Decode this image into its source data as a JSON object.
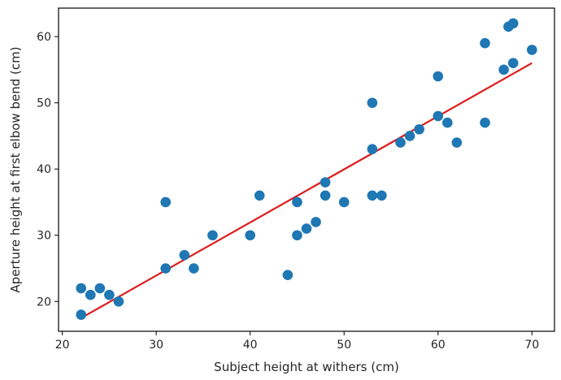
{
  "chart_data": {
    "type": "scatter",
    "title": "",
    "xlabel": "Subject height at withers (cm)",
    "ylabel": "Aperture height at first elbow bend (cm)",
    "xlim": [
      19.6,
      72.4
    ],
    "ylim": [
      15.5,
      64.3
    ],
    "x_ticks": [
      20,
      30,
      40,
      50,
      60,
      70
    ],
    "y_ticks": [
      20,
      30,
      40,
      50,
      60
    ],
    "grid": false,
    "point_color": "#1f77b4",
    "fit_color": "#dd1c1c",
    "points": [
      {
        "x": 22,
        "y": 22
      },
      {
        "x": 22,
        "y": 18
      },
      {
        "x": 23,
        "y": 21
      },
      {
        "x": 24,
        "y": 22
      },
      {
        "x": 25,
        "y": 21
      },
      {
        "x": 26,
        "y": 20
      },
      {
        "x": 31,
        "y": 35
      },
      {
        "x": 31,
        "y": 25
      },
      {
        "x": 33,
        "y": 27
      },
      {
        "x": 34,
        "y": 25
      },
      {
        "x": 36,
        "y": 30
      },
      {
        "x": 40,
        "y": 30
      },
      {
        "x": 41,
        "y": 36
      },
      {
        "x": 44,
        "y": 24
      },
      {
        "x": 45,
        "y": 35
      },
      {
        "x": 45,
        "y": 30
      },
      {
        "x": 46,
        "y": 31
      },
      {
        "x": 47,
        "y": 32
      },
      {
        "x": 48,
        "y": 38
      },
      {
        "x": 48,
        "y": 36
      },
      {
        "x": 50,
        "y": 35
      },
      {
        "x": 53,
        "y": 50
      },
      {
        "x": 53,
        "y": 43
      },
      {
        "x": 53,
        "y": 36
      },
      {
        "x": 54,
        "y": 36
      },
      {
        "x": 56,
        "y": 44
      },
      {
        "x": 57,
        "y": 45
      },
      {
        "x": 58,
        "y": 46
      },
      {
        "x": 60,
        "y": 54
      },
      {
        "x": 60,
        "y": 48
      },
      {
        "x": 61,
        "y": 47
      },
      {
        "x": 62,
        "y": 44
      },
      {
        "x": 65,
        "y": 59
      },
      {
        "x": 65,
        "y": 47
      },
      {
        "x": 67,
        "y": 55
      },
      {
        "x": 67.5,
        "y": 61.5
      },
      {
        "x": 68,
        "y": 62
      },
      {
        "x": 68,
        "y": 56
      },
      {
        "x": 70,
        "y": 58
      }
    ],
    "fit_line": {
      "x": [
        22,
        70
      ],
      "y": [
        17.5,
        56
      ]
    }
  }
}
